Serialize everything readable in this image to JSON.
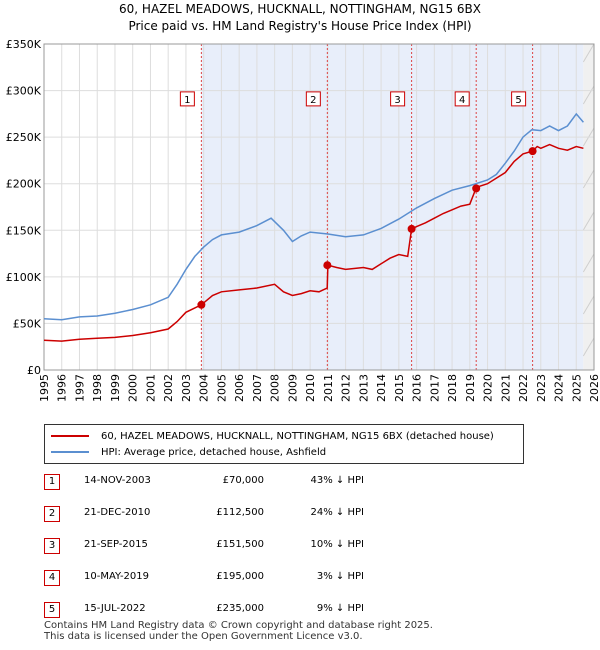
{
  "title_line1": "60, HAZEL MEADOWS, HUCKNALL, NOTTINGHAM, NG15 6BX",
  "title_line2": "Price paid vs. HM Land Registry's House Price Index (HPI)",
  "colors": {
    "property": "#cc0000",
    "hpi": "#5b8fd0",
    "band": "#e8eefa",
    "marker_border": "#cc0000"
  },
  "chart_data": {
    "type": "line",
    "title": "Price paid vs. HM Land Registry's House Price Index (HPI)",
    "xlabel": "",
    "ylabel": "",
    "xlim": [
      1995,
      2026
    ],
    "ylim": [
      0,
      350000
    ],
    "y_ticks": [
      0,
      50000,
      100000,
      150000,
      200000,
      250000,
      300000,
      350000
    ],
    "y_tick_labels": [
      "£0",
      "£50K",
      "£100K",
      "£150K",
      "£200K",
      "£250K",
      "£300K",
      "£350K"
    ],
    "x_ticks": [
      1995,
      1996,
      1997,
      1998,
      1999,
      2000,
      2001,
      2002,
      2003,
      2004,
      2005,
      2006,
      2007,
      2008,
      2009,
      2010,
      2011,
      2012,
      2013,
      2014,
      2015,
      2016,
      2017,
      2018,
      2019,
      2020,
      2021,
      2022,
      2023,
      2024,
      2025,
      2026
    ],
    "grid": true,
    "series": [
      {
        "name": "60, HAZEL MEADOWS, HUCKNALL, NOTTINGHAM, NG15 6BX (detached house)",
        "color": "#cc0000",
        "x": [
          1995.0,
          1996.0,
          1997.0,
          1998.0,
          1999.0,
          2000.0,
          2001.0,
          2002.0,
          2002.5,
          2003.0,
          2003.87,
          2004.5,
          2005.0,
          2006.0,
          2007.0,
          2008.0,
          2008.5,
          2009.0,
          2009.5,
          2010.0,
          2010.5,
          2010.96,
          2011.0,
          2011.5,
          2012.0,
          2013.0,
          2013.5,
          2014.0,
          2014.5,
          2015.0,
          2015.5,
          2015.72,
          2016.0,
          2016.5,
          2017.0,
          2017.5,
          2018.0,
          2018.5,
          2019.0,
          2019.35,
          2019.5,
          2020.0,
          2020.5,
          2021.0,
          2021.5,
          2022.0,
          2022.54,
          2022.8,
          2023.0,
          2023.5,
          2024.0,
          2024.5,
          2025.0,
          2025.4
        ],
        "values": [
          32000,
          31000,
          33000,
          34000,
          35000,
          37000,
          40000,
          44000,
          52000,
          62000,
          70000,
          80000,
          84000,
          86000,
          88000,
          92000,
          84000,
          80000,
          82000,
          85000,
          84000,
          88000,
          112500,
          110000,
          108000,
          110000,
          108000,
          114000,
          120000,
          124000,
          122000,
          151500,
          154000,
          158000,
          163000,
          168000,
          172000,
          176000,
          178000,
          195000,
          197000,
          200000,
          206000,
          212000,
          224000,
          232000,
          235000,
          240000,
          238000,
          242000,
          238000,
          236000,
          240000,
          238000
        ]
      },
      {
        "name": "HPI: Average price, detached house, Ashfield",
        "color": "#5b8fd0",
        "x": [
          1995.0,
          1996.0,
          1997.0,
          1998.0,
          1999.0,
          2000.0,
          2001.0,
          2002.0,
          2002.5,
          2003.0,
          2003.5,
          2004.0,
          2004.5,
          2005.0,
          2006.0,
          2007.0,
          2007.8,
          2008.5,
          2009.0,
          2009.5,
          2010.0,
          2011.0,
          2012.0,
          2013.0,
          2014.0,
          2015.0,
          2016.0,
          2017.0,
          2018.0,
          2019.0,
          2020.0,
          2020.5,
          2021.0,
          2021.5,
          2022.0,
          2022.5,
          2023.0,
          2023.5,
          2024.0,
          2024.5,
          2025.0,
          2025.4
        ],
        "values": [
          55000,
          54000,
          57000,
          58000,
          61000,
          65000,
          70000,
          78000,
          92000,
          108000,
          122000,
          132000,
          140000,
          145000,
          148000,
          155000,
          163000,
          150000,
          138000,
          144000,
          148000,
          146000,
          143000,
          145000,
          152000,
          162000,
          174000,
          184000,
          193000,
          198000,
          204000,
          210000,
          222000,
          235000,
          250000,
          258000,
          257000,
          262000,
          257000,
          262000,
          275000,
          266000
        ]
      }
    ],
    "transactions": [
      {
        "marker": "1",
        "date": "14-NOV-2003",
        "x": 2003.87,
        "price": 70000,
        "price_label": "£70,000",
        "hpi_label": "43% ↓ HPI"
      },
      {
        "marker": "2",
        "date": "21-DEC-2010",
        "x": 2010.97,
        "price": 112500,
        "price_label": "£112,500",
        "hpi_label": "24% ↓ HPI"
      },
      {
        "marker": "3",
        "date": "21-SEP-2015",
        "x": 2015.72,
        "price": 151500,
        "price_label": "£151,500",
        "hpi_label": "10% ↓ HPI"
      },
      {
        "marker": "4",
        "date": "10-MAY-2019",
        "x": 2019.36,
        "price": 195000,
        "price_label": "£195,000",
        "hpi_label": "3% ↓ HPI"
      },
      {
        "marker": "5",
        "date": "15-JUL-2022",
        "x": 2022.54,
        "price": 235000,
        "price_label": "£235,000",
        "hpi_label": "9% ↓ HPI"
      }
    ],
    "marker_box_value": 290000,
    "future_from": 2025.4,
    "legend_position": "below"
  },
  "legend": {
    "property_label": "60, HAZEL MEADOWS, HUCKNALL, NOTTINGHAM, NG15 6BX (detached house)",
    "hpi_label": "HPI: Average price, detached house, Ashfield"
  },
  "footer": {
    "line1": "Contains HM Land Registry data © Crown copyright and database right 2025.",
    "line2": "This data is licensed under the Open Government Licence v3.0."
  }
}
